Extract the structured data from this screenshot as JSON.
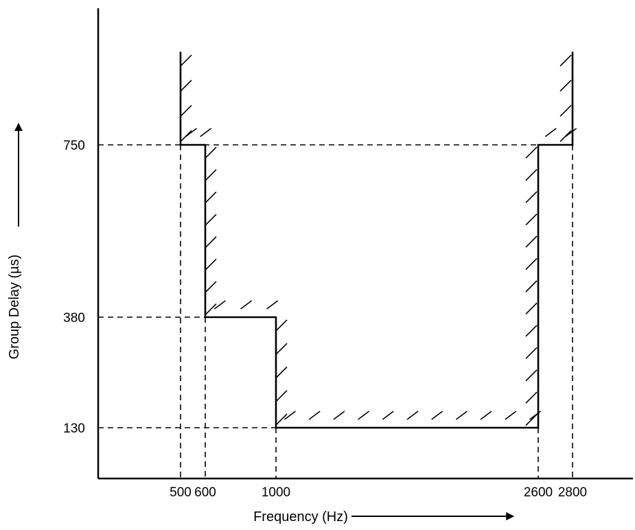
{
  "chart_data": {
    "type": "line",
    "title": "",
    "xlabel": "Frequency (Hz)",
    "ylabel": "Group Delay (µs)",
    "x_ticks": [
      {
        "value": 500,
        "label": "500"
      },
      {
        "value": 600,
        "label": "600"
      },
      {
        "value": 1000,
        "label": "1000"
      },
      {
        "value": 2600,
        "label": "2600"
      },
      {
        "value": 2800,
        "label": "2800"
      }
    ],
    "y_ticks": [
      {
        "value": 130,
        "label": "130"
      },
      {
        "value": 380,
        "label": "380"
      },
      {
        "value": 750,
        "label": "750"
      }
    ],
    "series": [
      {
        "points": [
          {
            "x": 500,
            "y": 950
          },
          {
            "x": 500,
            "y": 750
          },
          {
            "x": 600,
            "y": 750
          },
          {
            "x": 600,
            "y": 380
          },
          {
            "x": 1000,
            "y": 380
          },
          {
            "x": 1000,
            "y": 130
          },
          {
            "x": 2600,
            "y": 130
          },
          {
            "x": 2600,
            "y": 750
          },
          {
            "x": 2800,
            "y": 750
          },
          {
            "x": 2800,
            "y": 950
          }
        ]
      }
    ],
    "hatched_side": "outside",
    "grid": false,
    "legend": "none",
    "colors": {
      "line": "#000000"
    }
  }
}
